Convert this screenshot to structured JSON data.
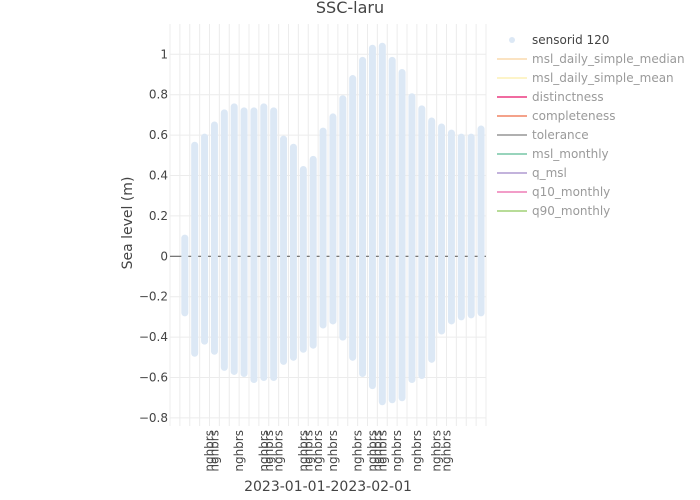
{
  "chart_data": {
    "type": "scatter",
    "title": "SSC-laru",
    "xlabel": "2023-01-01-2023-02-01",
    "ylabel": "Sea level (m)",
    "ylim": [
      -0.84,
      1.15
    ],
    "xlim": [
      "2022-12-31",
      "2023-02-01"
    ],
    "grid": true,
    "legend_placement": "right",
    "y_ticks": [
      "1",
      "0.8",
      "0.6",
      "0.4",
      "0.2",
      "0",
      "−0.2",
      "−0.4",
      "−0.6",
      "−0.8"
    ],
    "x_flag_labels": [
      "nghbrs",
      "nghbrs",
      "nghbrs",
      "nghbrs",
      "nghbrs",
      "nghbrs",
      "nghbrs",
      "nghbrs",
      "nghbrs",
      "nghbrs",
      "nghbrs",
      "nghbrs",
      "nghbrs",
      "nghbrs",
      "nghbrs",
      "nghbrs",
      "nghbrs",
      "nghbrs"
    ],
    "x_flag_days": [
      4,
      4.5,
      7,
      9.5,
      10,
      11,
      13.5,
      14,
      15,
      16.5,
      19,
      20.5,
      21,
      21.5,
      23,
      25,
      27,
      28
    ],
    "series": [
      {
        "name": "sensorid 120",
        "color": "#dce8f5",
        "x": [
          "2023-01-01",
          "2023-01-02",
          "2023-01-03",
          "2023-01-04",
          "2023-01-05",
          "2023-01-06",
          "2023-01-07",
          "2023-01-08",
          "2023-01-09",
          "2023-01-10",
          "2023-01-11",
          "2023-01-12",
          "2023-01-13",
          "2023-01-14",
          "2023-01-15",
          "2023-01-16",
          "2023-01-17",
          "2023-01-18",
          "2023-01-19",
          "2023-01-20",
          "2023-01-21",
          "2023-01-22",
          "2023-01-23",
          "2023-01-24",
          "2023-01-25",
          "2023-01-26",
          "2023-01-27",
          "2023-01-28",
          "2023-01-29",
          "2023-01-30",
          "2023-01-31"
        ],
        "high": [
          0.09,
          0.55,
          0.59,
          0.65,
          0.71,
          0.74,
          0.72,
          0.72,
          0.74,
          0.72,
          0.58,
          0.54,
          0.43,
          0.48,
          0.62,
          0.69,
          0.78,
          0.88,
          0.97,
          1.03,
          1.04,
          0.97,
          0.91,
          0.79,
          0.73,
          0.67,
          0.64,
          0.61,
          0.59,
          0.59,
          0.63
        ],
        "low": [
          -0.28,
          -0.48,
          -0.42,
          -0.47,
          -0.55,
          -0.57,
          -0.58,
          -0.61,
          -0.6,
          -0.6,
          -0.52,
          -0.5,
          -0.46,
          -0.44,
          -0.34,
          -0.32,
          -0.4,
          -0.5,
          -0.58,
          -0.64,
          -0.72,
          -0.71,
          -0.7,
          -0.61,
          -0.59,
          -0.51,
          -0.37,
          -0.32,
          -0.3,
          -0.29,
          -0.28
        ]
      }
    ],
    "legend": [
      {
        "name": "sensorid 120",
        "color": "#dce8f5",
        "marker": "dot",
        "active": true
      },
      {
        "name": "msl_daily_simple_median",
        "color": "#fbe3c2",
        "marker": "line",
        "active": false
      },
      {
        "name": "msl_daily_simple_mean",
        "color": "#fdf4c8",
        "marker": "line",
        "active": false
      },
      {
        "name": "distinctness",
        "color": "#f06ba0",
        "marker": "line",
        "active": false
      },
      {
        "name": "completeness",
        "color": "#f4a28a",
        "marker": "line",
        "active": false
      },
      {
        "name": "tolerance",
        "color": "#b0b0b0",
        "marker": "line",
        "active": false
      },
      {
        "name": "msl_monthly",
        "color": "#98d4bc",
        "marker": "line",
        "active": false
      },
      {
        "name": "q_msl",
        "color": "#c3b3dc",
        "marker": "line",
        "active": false
      },
      {
        "name": "q10_monthly",
        "color": "#f29dc8",
        "marker": "line",
        "active": false
      },
      {
        "name": "q90_monthly",
        "color": "#b8dc98",
        "marker": "line",
        "active": false
      }
    ]
  }
}
